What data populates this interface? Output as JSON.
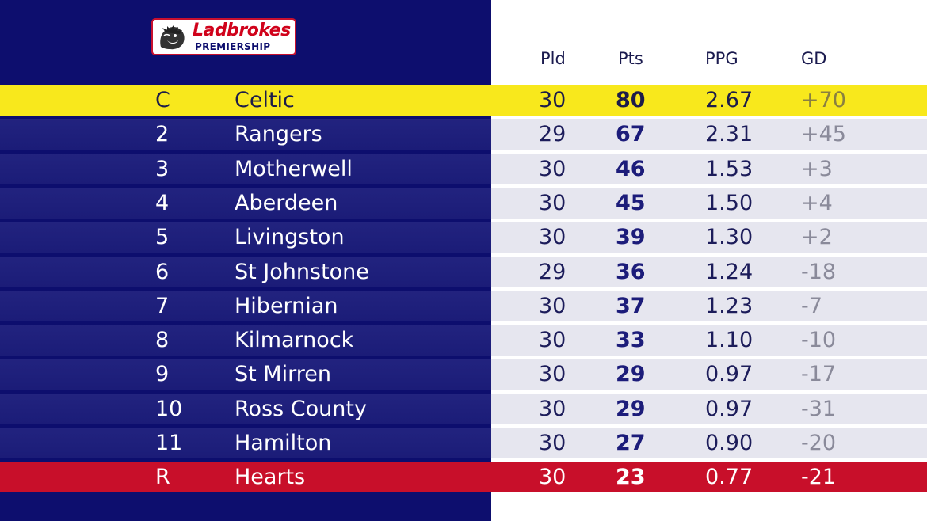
{
  "logo": {
    "brand": "Ladbrokes",
    "competition": "PREMIERSHIP",
    "icon": "lion-head-icon",
    "colors": {
      "brand_red": "#d0021b",
      "border": "#c8102e"
    }
  },
  "headers": {
    "pld": "Pld",
    "pts": "Pts",
    "ppg": "PPG",
    "gd": "GD"
  },
  "colors": {
    "panel_navy": "#0d0e6e",
    "row_navy": "#1b1c78",
    "row_light": "#e6e6ef",
    "champion_yellow": "#f8e81c",
    "relegated_red": "#c80f2a"
  },
  "rows": [
    {
      "pos": "C",
      "team": "Celtic",
      "pld": "30",
      "pts": "80",
      "ppg": "2.67",
      "gd": "+70",
      "status": "champion"
    },
    {
      "pos": "2",
      "team": "Rangers",
      "pld": "29",
      "pts": "67",
      "ppg": "2.31",
      "gd": "+45",
      "status": "normal"
    },
    {
      "pos": "3",
      "team": "Motherwell",
      "pld": "30",
      "pts": "46",
      "ppg": "1.53",
      "gd": "+3",
      "status": "normal"
    },
    {
      "pos": "4",
      "team": "Aberdeen",
      "pld": "30",
      "pts": "45",
      "ppg": "1.50",
      "gd": "+4",
      "status": "normal"
    },
    {
      "pos": "5",
      "team": "Livingston",
      "pld": "30",
      "pts": "39",
      "ppg": "1.30",
      "gd": "+2",
      "status": "normal"
    },
    {
      "pos": "6",
      "team": "St Johnstone",
      "pld": "29",
      "pts": "36",
      "ppg": "1.24",
      "gd": "-18",
      "status": "normal"
    },
    {
      "pos": "7",
      "team": "Hibernian",
      "pld": "30",
      "pts": "37",
      "ppg": "1.23",
      "gd": "-7",
      "status": "normal"
    },
    {
      "pos": "8",
      "team": "Kilmarnock",
      "pld": "30",
      "pts": "33",
      "ppg": "1.10",
      "gd": "-10",
      "status": "normal"
    },
    {
      "pos": "9",
      "team": "St Mirren",
      "pld": "30",
      "pts": "29",
      "ppg": "0.97",
      "gd": "-17",
      "status": "normal"
    },
    {
      "pos": "10",
      "team": "Ross County",
      "pld": "30",
      "pts": "29",
      "ppg": "0.97",
      "gd": "-31",
      "status": "normal"
    },
    {
      "pos": "11",
      "team": "Hamilton",
      "pld": "30",
      "pts": "27",
      "ppg": "0.90",
      "gd": "-20",
      "status": "normal"
    },
    {
      "pos": "R",
      "team": "Hearts",
      "pld": "30",
      "pts": "23",
      "ppg": "0.77",
      "gd": "-21",
      "status": "relegated"
    }
  ]
}
